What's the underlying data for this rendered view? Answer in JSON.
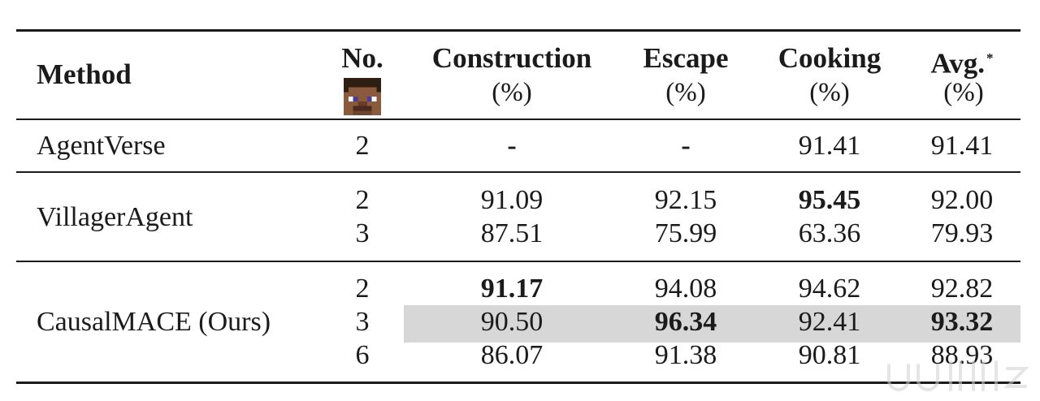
{
  "table": {
    "headers": {
      "method": "Method",
      "no": "No.",
      "construction": "Construction",
      "construction_unit": "(%)",
      "escape": "Escape",
      "escape_unit": "(%)",
      "cooking": "Cooking",
      "cooking_unit": "(%)",
      "avg": "Avg.",
      "avg_mark": "*",
      "avg_unit": "(%)",
      "agent_icon": "minecraft-player-face-icon"
    },
    "rows": [
      {
        "method": "AgentVerse",
        "no": "2",
        "construction": "-",
        "escape": "-",
        "cooking": "91.41",
        "avg": "91.41"
      },
      {
        "method": "VillagerAgent",
        "no": "2",
        "construction": "91.09",
        "escape": "92.15",
        "cooking": "95.45",
        "avg": "92.00"
      },
      {
        "method": "",
        "no": "3",
        "construction": "87.51",
        "escape": "75.99",
        "cooking": "63.36",
        "avg": "79.93"
      },
      {
        "method": "",
        "no": "2",
        "construction": "91.17",
        "escape": "94.08",
        "cooking": "94.62",
        "avg": "92.82"
      },
      {
        "method": "CausalMACE (Ours)",
        "no": "3",
        "construction": "90.50",
        "escape": "96.34",
        "cooking": "92.41",
        "avg": "93.32"
      },
      {
        "method": "",
        "no": "6",
        "construction": "86.07",
        "escape": "91.38",
        "cooking": "90.81",
        "avg": "88.93"
      }
    ],
    "highlight_color": "#d7d7d7"
  }
}
